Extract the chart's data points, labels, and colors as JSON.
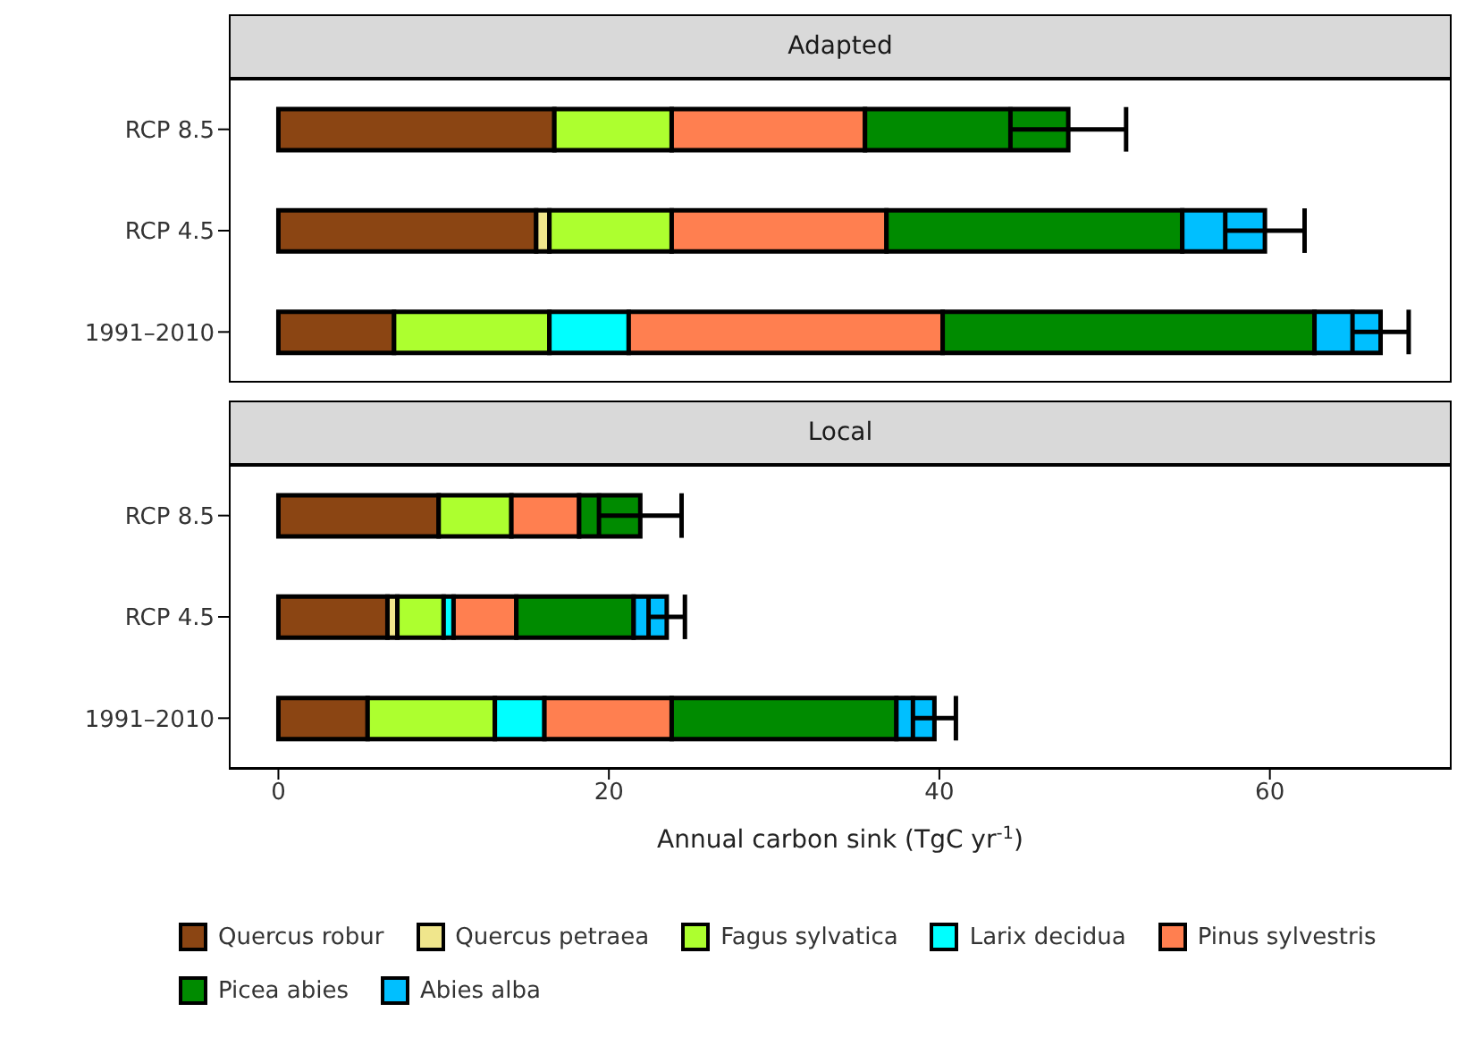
{
  "chart_data": [
    {
      "type": "bar",
      "orientation": "horizontal",
      "stacked": true,
      "title": "Adapted",
      "categories": [
        "RCP 8.5",
        "RCP 4.5",
        "1991–2010"
      ],
      "xlim": [
        -3,
        71
      ],
      "xticks": [
        0,
        20,
        40,
        60
      ],
      "tick_labels": "y",
      "series": [
        {
          "color": "#8b4513",
          "values": [
            16.7,
            15.6,
            7.0
          ]
        },
        {
          "color": "#f0e68c",
          "values": [
            0,
            0.8,
            0
          ]
        },
        {
          "color": "#adff2f",
          "values": [
            7.1,
            7.4,
            9.4
          ]
        },
        {
          "color": "#00ffff",
          "values": [
            0,
            0,
            4.8
          ]
        },
        {
          "color": "#ff7f50",
          "values": [
            11.7,
            13.0,
            19.0
          ]
        },
        {
          "color": "#008b00",
          "values": [
            12.3,
            17.9,
            22.5
          ]
        },
        {
          "color": "#00bfff",
          "values": [
            0,
            5.0,
            4.0
          ],
          "errors": [
            3.5,
            2.4,
            1.7
          ]
        }
      ]
    },
    {
      "type": "bar",
      "orientation": "horizontal",
      "stacked": true,
      "title": "Local",
      "categories": [
        "RCP 8.5",
        "RCP 4.5",
        "1991–2010"
      ],
      "xlim": [
        -3,
        71
      ],
      "xticks": [
        0,
        20,
        40,
        60
      ],
      "xlabel": "Annual carbon sink (TgC yr$^{-1}$)",
      "legend": "bottom",
      "series": [
        {
          "name": "Quercus robur",
          "color": "#8b4513",
          "values": [
            9.7,
            6.6,
            5.4
          ]
        },
        {
          "name": "Quercus petraea",
          "color": "#f0e68c",
          "values": [
            0,
            0.6,
            0
          ]
        },
        {
          "name": "Fagus sylvatica",
          "color": "#adff2f",
          "values": [
            4.4,
            2.8,
            7.7
          ]
        },
        {
          "name": "Larix decidua",
          "color": "#00ffff",
          "values": [
            0,
            0.6,
            3.0
          ]
        },
        {
          "name": "Pinus sylvestris",
          "color": "#ff7f50",
          "values": [
            4.1,
            3.8,
            7.7
          ]
        },
        {
          "name": "Picea abies",
          "color": "#008b00",
          "values": [
            3.7,
            7.1,
            13.6
          ]
        },
        {
          "name": "Abies alba",
          "color": "#00bfff",
          "values": [
            0,
            2.0,
            2.3
          ],
          "errors": [
            2.5,
            1.1,
            1.3
          ]
        }
      ]
    }
  ]
}
